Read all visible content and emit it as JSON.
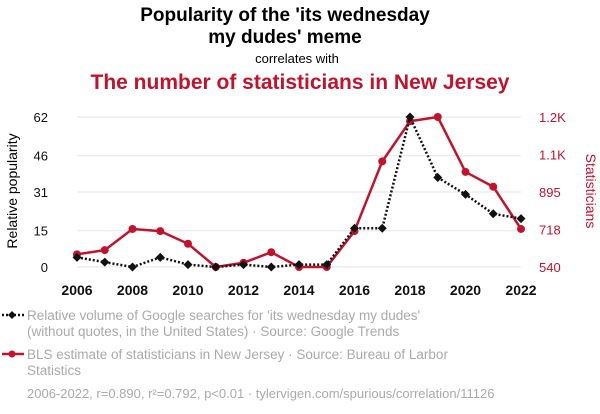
{
  "header": {
    "title_line1": "Popularity of the 'its wednesday",
    "title_line2": "my dudes' meme",
    "connector": "correlates with",
    "subtitle": "The number of statisticians in New Jersey"
  },
  "colors": {
    "series1": "#111111",
    "series2": "#c0142e",
    "grid": "#e6e6e6",
    "muted": "#aaaaaa"
  },
  "chart_data": {
    "type": "line",
    "x": [
      2006,
      2007,
      2008,
      2009,
      2010,
      2011,
      2012,
      2013,
      2014,
      2015,
      2016,
      2017,
      2018,
      2019,
      2020,
      2021,
      2022
    ],
    "x_ticks": [
      "2006",
      "2008",
      "2010",
      "2012",
      "2014",
      "2016",
      "2018",
      "2020",
      "2022"
    ],
    "xlim": [
      2006,
      2022
    ],
    "left_axis": {
      "label": "Relative popularity",
      "ticks": [
        "0",
        "15",
        "31",
        "46",
        "62"
      ],
      "tick_values": [
        0,
        15,
        31,
        46,
        62
      ],
      "ylim": [
        0,
        62
      ]
    },
    "right_axis": {
      "label": "Statisticians",
      "ticks": [
        "540",
        "718",
        "895",
        "1.1K",
        "1.2K"
      ],
      "tick_values": [
        540,
        718,
        895,
        1073,
        1250
      ],
      "ylim": [
        540,
        1250
      ]
    },
    "series": [
      {
        "name": "Relative volume of Google searches for 'its wednesday my dudes' (without quotes, in the United States) · Source: Google Trends",
        "axis": "left",
        "style": "dotted",
        "marker": "diamond",
        "values": [
          4,
          2,
          0,
          4,
          1,
          0,
          1,
          0,
          1,
          1,
          16,
          16,
          62,
          37,
          30,
          22,
          20
        ]
      },
      {
        "name": "BLS estimate of statisticians in New Jersey · Source: Bureau of Larbor Statistics",
        "axis": "right",
        "style": "solid",
        "marker": "circle",
        "values": [
          600,
          620,
          720,
          710,
          650,
          540,
          560,
          610,
          540,
          540,
          710,
          1040,
          1230,
          1250,
          990,
          920,
          720
        ]
      }
    ],
    "grid": true,
    "legend_position": "bottom-left"
  },
  "legend": {
    "item1_line1": "Relative volume of Google searches for 'its wednesday my dudes'",
    "item1_line2": "(without quotes, in the United States) · Source: Google Trends",
    "item2_line1": "BLS estimate of statisticians in New Jersey · Source: Bureau of Larbor",
    "item2_line2": "Statistics"
  },
  "footer": "2006-2022, r=0.890, r²=0.792, p<0.01 · tylervigen.com/spurious/correlation/11126"
}
